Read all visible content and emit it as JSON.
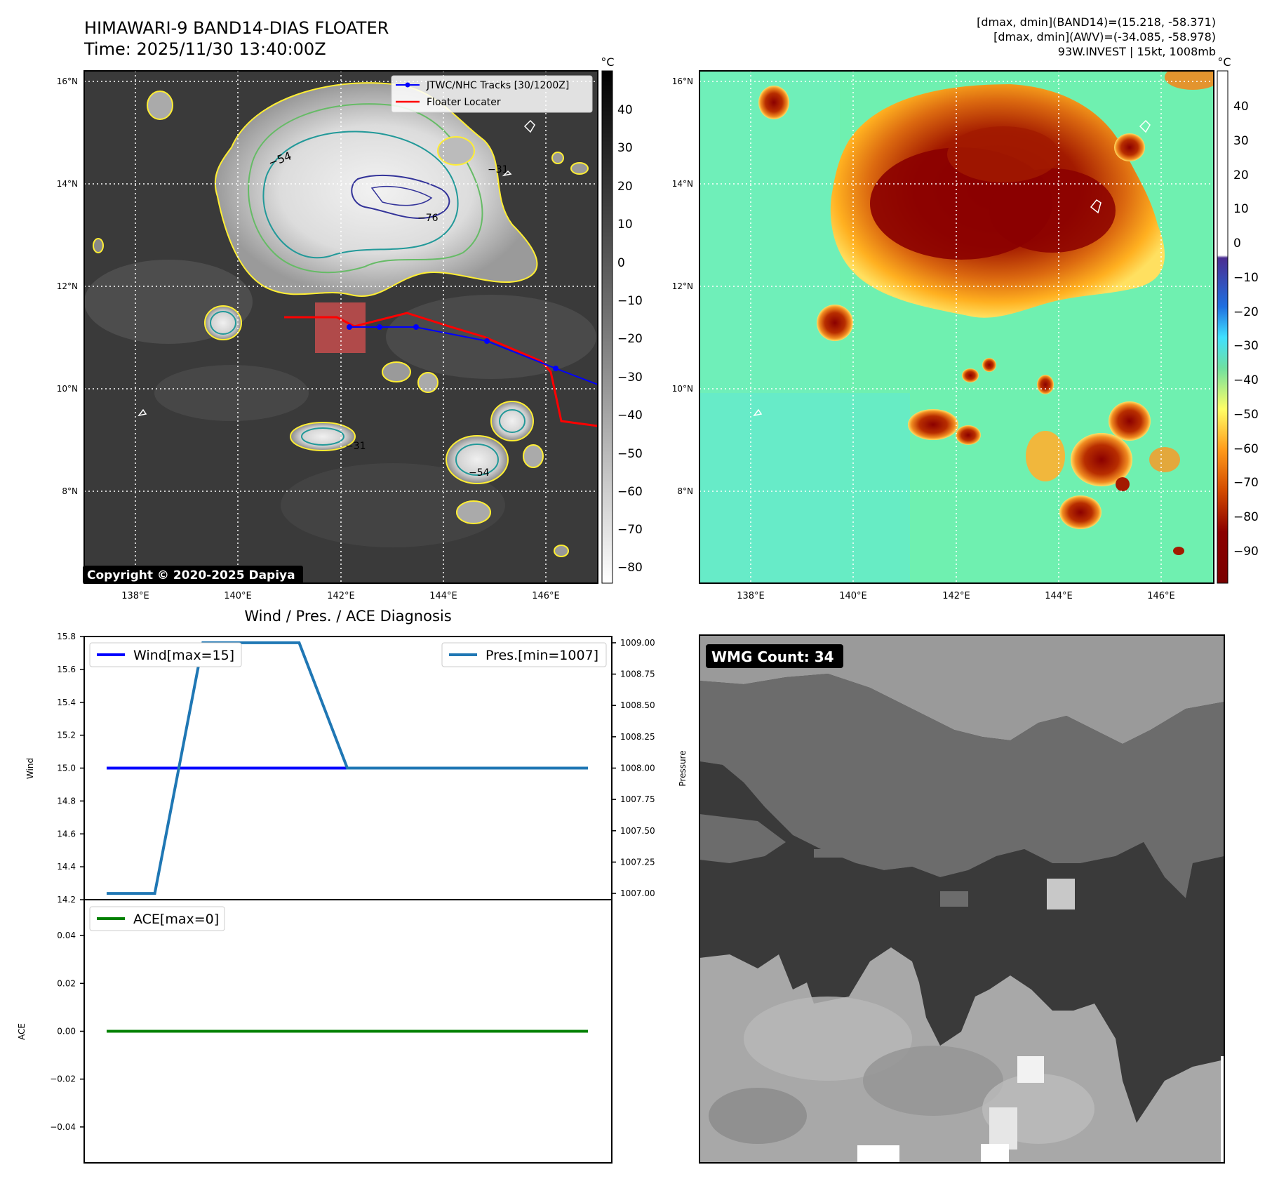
{
  "header": {
    "title": "HIMAWARI-9 BAND14-DIAS FLOATER",
    "time": "Time: 2025/11/30 13:40:00Z",
    "stats_band14": "[dmax, dmin](BAND14)=(15.218, -58.371)",
    "stats_awv": "[dmax, dmin](AWV)=(-34.085, -58.978)",
    "storm_info": "93W.INVEST | 15kt, 1008mb"
  },
  "maps": {
    "lat_labels": [
      "16°N",
      "14°N",
      "12°N",
      "10°N",
      "8°N"
    ],
    "lon_labels": [
      "138°E",
      "140°E",
      "142°E",
      "144°E",
      "146°E"
    ],
    "colorbar_unit": "°C",
    "left_colorbar_ticks": [
      "40",
      "30",
      "20",
      "10",
      "0",
      "−10",
      "−20",
      "−30",
      "−40",
      "−50",
      "−60",
      "−70",
      "−80"
    ],
    "right_colorbar_ticks": [
      "40",
      "30",
      "20",
      "10",
      "0",
      "−10",
      "−20",
      "−30",
      "−40",
      "−50",
      "−60",
      "−70",
      "−80",
      "−90"
    ],
    "legend_tracks": "JTWC/NHC Tracks [30/1200Z]",
    "legend_floater": "Floater Locater",
    "copyright": "Copyright © 2020-2025 Dapiya",
    "contour_labels": [
      "−54",
      "−76",
      "−31",
      "−54",
      "−31"
    ],
    "colors": {
      "track_jtwc": "#0000ff",
      "track_floater": "#ff0000",
      "contour_yellow": "#ffff33",
      "contour_green": "#66cc66",
      "contour_teal": "#229999",
      "contour_navy": "#333399"
    }
  },
  "diagnosis": {
    "title": "Wind / Pres. / ACE Diagnosis",
    "wind_axis_label": "Wind",
    "pressure_axis_label": "Pressure",
    "ace_axis_label": "ACE",
    "legend_wind": "Wind[max=15]",
    "legend_pres": "Pres.[min=1007]",
    "legend_ace": "ACE[max=0]",
    "wind_ticks": [
      "15.8",
      "15.6",
      "15.4",
      "15.2",
      "15.0",
      "14.8",
      "14.6",
      "14.4",
      "14.2"
    ],
    "pressure_ticks": [
      "1009.00",
      "1008.75",
      "1008.50",
      "1008.25",
      "1008.00",
      "1007.75",
      "1007.50",
      "1007.25",
      "1007.00"
    ],
    "ace_ticks": [
      "0.04",
      "0.02",
      "0.00",
      "−0.02",
      "−0.04"
    ]
  },
  "wmg": {
    "label": "WMG Count: 34"
  },
  "chart_data": [
    {
      "type": "line",
      "title": "Wind / Pres. / ACE Diagnosis",
      "ylabel": "Wind",
      "ylim": [
        14.2,
        15.8
      ],
      "x": [
        0,
        1,
        2,
        3,
        4,
        5,
        6,
        7,
        8,
        9,
        10
      ],
      "series": [
        {
          "name": "Wind[max=15]",
          "color": "#0000ff",
          "values": [
            15,
            15,
            15,
            15,
            15,
            15,
            15,
            15,
            15,
            15,
            15
          ]
        }
      ]
    },
    {
      "type": "line",
      "ylabel": "Pressure",
      "ylim": [
        1006.95,
        1009.05
      ],
      "x": [
        0,
        1,
        2,
        3,
        4,
        5,
        6,
        7,
        8,
        9,
        10
      ],
      "series": [
        {
          "name": "Pres.[min=1007]",
          "color": "#1f77b4",
          "values": [
            1007,
            1007,
            1009,
            1009,
            1009,
            1008,
            1008,
            1008,
            1008,
            1008,
            1008
          ]
        }
      ]
    },
    {
      "type": "line",
      "ylabel": "ACE",
      "ylim": [
        -0.055,
        0.055
      ],
      "x": [
        0,
        1,
        2,
        3,
        4,
        5,
        6,
        7,
        8,
        9,
        10
      ],
      "series": [
        {
          "name": "ACE[max=0]",
          "color": "#008000",
          "values": [
            0,
            0,
            0,
            0,
            0,
            0,
            0,
            0,
            0,
            0,
            0
          ]
        }
      ]
    }
  ]
}
